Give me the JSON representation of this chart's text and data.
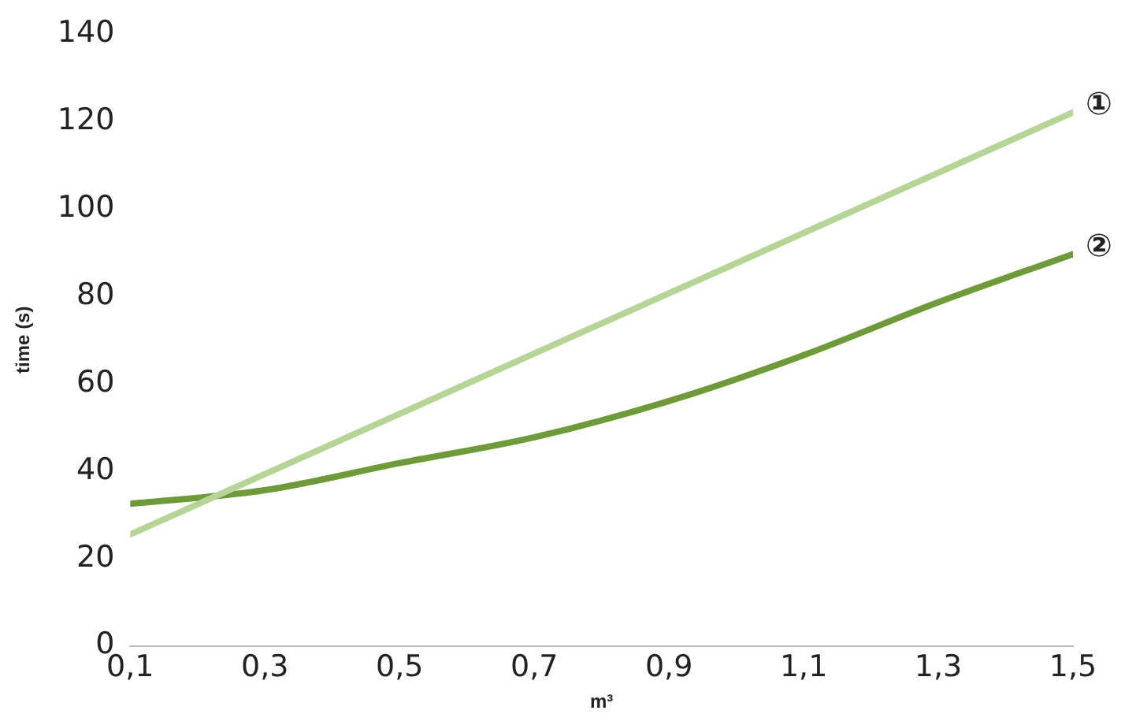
{
  "chart_data": {
    "type": "line",
    "xlabel": "m³",
    "ylabel": "time (s)",
    "xlim": [
      0.1,
      1.5
    ],
    "xticks": [
      {
        "value": 0.1,
        "label": "0,1"
      },
      {
        "value": 0.3,
        "label": "0,3"
      },
      {
        "value": 0.5,
        "label": "0,5"
      },
      {
        "value": 0.7,
        "label": "0,7"
      },
      {
        "value": 0.9,
        "label": "0,9"
      },
      {
        "value": 1.1,
        "label": "1,1"
      },
      {
        "value": 1.3,
        "label": "1,3"
      },
      {
        "value": 1.5,
        "label": "1,5"
      }
    ],
    "ylim": [
      0,
      140
    ],
    "yticks": [
      0,
      20,
      40,
      60,
      80,
      100,
      120,
      140
    ],
    "grid": false,
    "legend": false,
    "marker": "none",
    "line_style": "solid",
    "series": [
      {
        "name": "①",
        "color": "#b5d596",
        "x": [
          0.1,
          1.5
        ],
        "values": [
          25.5,
          122
        ]
      },
      {
        "name": "②",
        "color": "#6f9a3a",
        "x": [
          0.1,
          0.3,
          0.5,
          0.7,
          0.9,
          1.1,
          1.3,
          1.5
        ],
        "values": [
          32.5,
          35.6,
          41.8,
          47.7,
          56,
          66.5,
          78.6,
          89.6
        ]
      }
    ]
  }
}
